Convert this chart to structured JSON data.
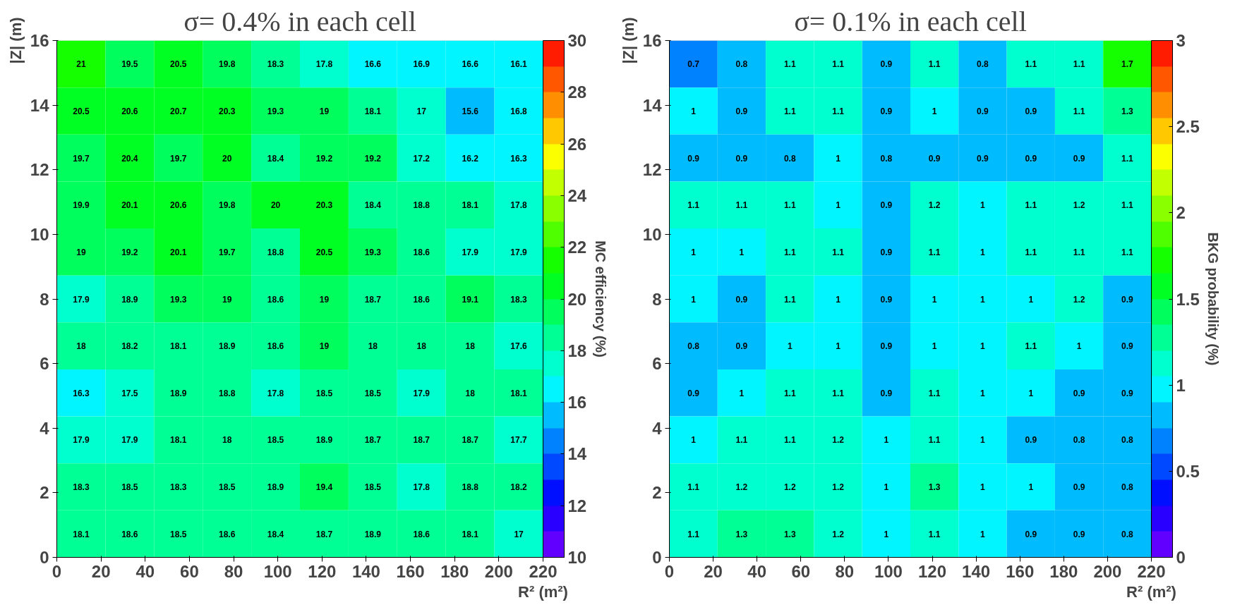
{
  "chart_data": [
    {
      "type": "heatmap",
      "title": "σ= 0.4% in each cell",
      "xlabel": "R² (m²)",
      "ylabel": "|Z| (m)",
      "clabel": "MC efficiency (%)",
      "xlim": [
        0,
        220
      ],
      "xticks": [
        0,
        20,
        40,
        60,
        80,
        100,
        120,
        140,
        160,
        180,
        200,
        220
      ],
      "ylim": [
        0,
        16
      ],
      "yticks": [
        0,
        2,
        4,
        6,
        8,
        10,
        12,
        14,
        16
      ],
      "clim": [
        10,
        30
      ],
      "cticks": [
        10,
        12,
        14,
        16,
        18,
        20,
        22,
        24,
        26,
        28,
        30
      ],
      "data_labels": true,
      "cells": [
        [
          21,
          19.5,
          20.5,
          19.8,
          18.3,
          17.8,
          16.6,
          16.9,
          16.6,
          16.1
        ],
        [
          20.5,
          20.6,
          20.7,
          20.3,
          19.3,
          19,
          18.1,
          17,
          15.6,
          16.8
        ],
        [
          19.7,
          20.4,
          19.7,
          20,
          18.4,
          19.2,
          19.2,
          17.2,
          16.2,
          16.3
        ],
        [
          19.9,
          20.1,
          20.6,
          19.8,
          20,
          20.3,
          18.4,
          18.8,
          18.1,
          17.8
        ],
        [
          19,
          19.2,
          20.1,
          19.7,
          18.8,
          20.5,
          19.3,
          18.6,
          17.9,
          17.9
        ],
        [
          17.9,
          18.9,
          19.3,
          19,
          18.6,
          19,
          18.7,
          18.6,
          19.1,
          18.3
        ],
        [
          18,
          18.2,
          18.1,
          18.9,
          18.6,
          19,
          18,
          18,
          18,
          17.6
        ],
        [
          16.3,
          17.5,
          18.9,
          18.8,
          17.8,
          18.5,
          18.5,
          17.9,
          18,
          18.1
        ],
        [
          17.9,
          17.9,
          18.1,
          18,
          18.5,
          18.9,
          18.7,
          18.7,
          18.7,
          17.7
        ],
        [
          18.3,
          18.5,
          18.3,
          18.5,
          18.9,
          19.4,
          18.5,
          17.8,
          18.8,
          18.2
        ],
        [
          18.1,
          18.6,
          18.5,
          18.6,
          18.4,
          18.7,
          18.9,
          18.6,
          18.1,
          17
        ]
      ]
    },
    {
      "type": "heatmap",
      "title": "σ= 0.1% in each cell",
      "xlabel": "R² (m²)",
      "ylabel": "|Z| (m)",
      "clabel": "BKG probability (%)",
      "xlim": [
        0,
        220
      ],
      "xticks": [
        0,
        20,
        40,
        60,
        80,
        100,
        120,
        140,
        160,
        180,
        200,
        220
      ],
      "ylim": [
        0,
        16
      ],
      "yticks": [
        0,
        2,
        4,
        6,
        8,
        10,
        12,
        14,
        16
      ],
      "clim": [
        0,
        3
      ],
      "cticks": [
        0,
        0.5,
        1,
        1.5,
        2,
        2.5,
        3
      ],
      "data_labels": true,
      "cells": [
        [
          0.7,
          0.8,
          1.1,
          1.1,
          0.9,
          1.1,
          0.8,
          1.1,
          1.1,
          1.7
        ],
        [
          1,
          0.9,
          1.1,
          1.1,
          0.9,
          1,
          0.9,
          0.9,
          1.1,
          1.3
        ],
        [
          0.9,
          0.9,
          0.8,
          1,
          0.8,
          0.9,
          0.9,
          0.9,
          0.9,
          1.1
        ],
        [
          1.1,
          1.1,
          1.1,
          1,
          0.9,
          1.2,
          1,
          1.1,
          1.2,
          1.1
        ],
        [
          1,
          1,
          1.1,
          1.1,
          0.9,
          1.1,
          1,
          1.1,
          1.1,
          1.1
        ],
        [
          1,
          0.9,
          1.1,
          1,
          0.9,
          1,
          1,
          1,
          1.2,
          0.9
        ],
        [
          0.8,
          0.9,
          1,
          1,
          0.9,
          1,
          1,
          1.1,
          1,
          0.9
        ],
        [
          0.9,
          1,
          1.1,
          1.1,
          0.9,
          1.1,
          1,
          1,
          0.9,
          0.9
        ],
        [
          1,
          1.1,
          1.1,
          1.2,
          1,
          1.1,
          1,
          0.9,
          0.8,
          0.8
        ],
        [
          1.1,
          1.2,
          1.2,
          1.2,
          1,
          1.3,
          1,
          1,
          0.9,
          0.8
        ],
        [
          1.1,
          1.3,
          1.3,
          1.2,
          1,
          1.1,
          1,
          0.9,
          0.9,
          0.8
        ]
      ]
    }
  ]
}
